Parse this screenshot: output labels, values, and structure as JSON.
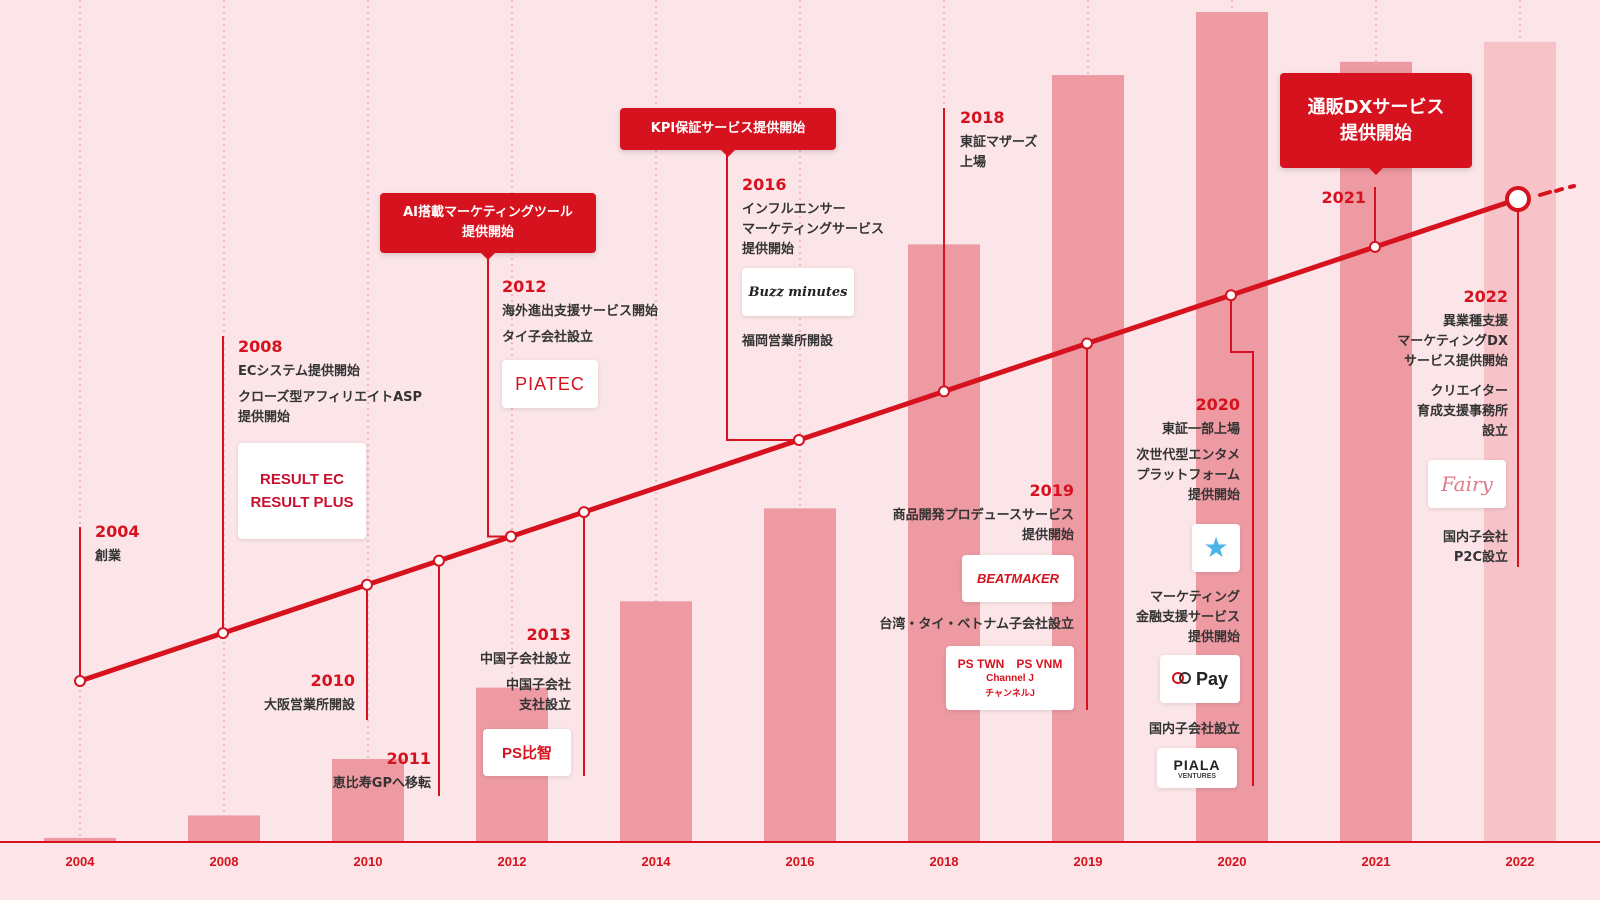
{
  "chart_data": {
    "type": "bar",
    "categories": [
      "2004",
      "2008",
      "2010",
      "2012",
      "2014",
      "2016",
      "2018",
      "2019",
      "2020",
      "2021",
      "2022"
    ],
    "values": [
      0.5,
      3.2,
      10,
      18.6,
      29,
      40.2,
      72,
      92.4,
      100,
      94,
      96.4
    ],
    "ylim": [
      0,
      100
    ],
    "grid": "vertical dotted lines per year",
    "colors": {
      "accent": "#d7121f",
      "bar": "#ee9aa3",
      "bar_last": "#f7c3c9",
      "background": "#fbe5e8"
    },
    "timeline_points": [
      "2004",
      "2008",
      "2010",
      "2011",
      "2012",
      "2013",
      "2016",
      "2018",
      "2019",
      "2020",
      "2021",
      "2022"
    ]
  },
  "events": {
    "y2004": {
      "year": "2004",
      "lines": [
        "創業"
      ]
    },
    "y2008": {
      "year": "2008",
      "lines": [
        "ECシステム提供開始",
        "クローズ型アフィリエイトASP",
        "提供開始"
      ]
    },
    "y2010": {
      "year": "2010",
      "lines": [
        "大阪営業所開設"
      ]
    },
    "y2011": {
      "year": "2011",
      "lines": [
        "恵比寿GPへ移転"
      ]
    },
    "y2012": {
      "year": "2012",
      "lines": [
        "海外進出支援サービス開始",
        "タイ子会社設立"
      ]
    },
    "y2013": {
      "year": "2013",
      "lines": [
        "中国子会社設立",
        "中国子会社",
        "支社設立"
      ]
    },
    "y2016": {
      "year": "2016",
      "lines": [
        "インフルエンサー",
        "マーケティングサービス",
        "提供開始",
        "福岡営業所開設"
      ]
    },
    "y2018": {
      "year": "2018",
      "lines": [
        "東証マザーズ",
        "上場"
      ]
    },
    "y2019": {
      "year": "2019",
      "lines": [
        "商品開発プロデュースサービス",
        "提供開始",
        "台湾・タイ・ベトナム子会社設立"
      ]
    },
    "y2020": {
      "year": "2020",
      "lines": [
        "東証一部上場",
        "次世代型エンタメ",
        "プラットフォーム",
        "提供開始",
        "マーケティング",
        "金融支援サービス",
        "提供開始",
        "国内子会社設立"
      ]
    },
    "y2021": {
      "year": "2021"
    },
    "y2022": {
      "year": "2022",
      "lines": [
        "異業種支援",
        "マーケティングDX",
        "サービス提供開始",
        "クリエイター",
        "育成支援事務所",
        "設立",
        "国内子会社",
        "P2C設立"
      ]
    }
  },
  "callouts": {
    "ai": "AI搭載マーケティングツール\n提供開始",
    "kpi": "KPI保証サービス提供開始",
    "dx": "通販DXサービス\n提供開始"
  },
  "logos": {
    "result_ec": "RESULT EC",
    "result_plus": "RESULT PLUS",
    "piatec": "PIATEC",
    "ps_china": "PS比智",
    "buzz": "Buzz minutes",
    "beatmaker": "BEATMAKER",
    "ps_twn": "PS TWN",
    "ps_vnm": "PS VNM",
    "channel_j": "Channel J",
    "channel_j_kana": "チャンネルJ",
    "pay": "Pay",
    "piala": "PIALA",
    "piala_sub": "VENTURES",
    "fairy": "Fairy"
  }
}
